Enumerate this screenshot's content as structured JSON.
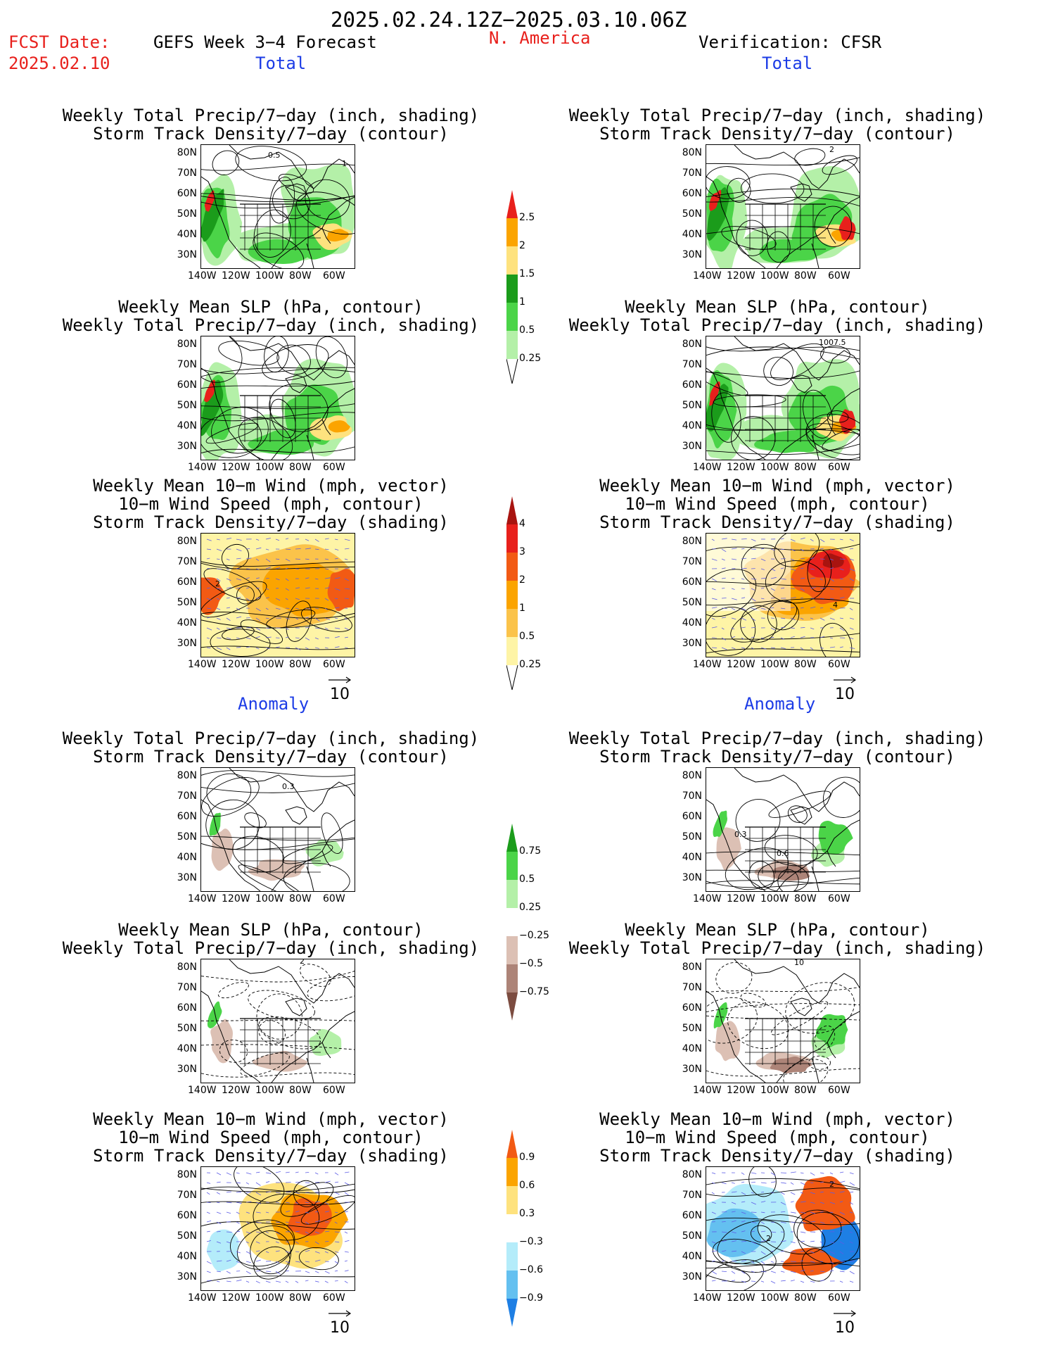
{
  "header": {
    "date_range": "2025.02.24.12Z−2025.03.10.06Z",
    "fcst_label": "FCST Date:",
    "fcst_date": "2025.02.10",
    "forecast_title": "GEFS Week 3−4 Forecast",
    "region": "N. America",
    "verification": "Verification: CFSR"
  },
  "sections": {
    "total_left": "Total",
    "total_right": "Total",
    "anomaly_left": "Anomaly",
    "anomaly_right": "Anomaly"
  },
  "panel_titles": {
    "precip_storm": [
      "Weekly Total Precip/7−day (inch, shading)",
      "Storm Track Density/7−day (contour)"
    ],
    "slp_precip": [
      "Weekly Mean SLP (hPa, contour)",
      "Weekly Total Precip/7−day (inch, shading)"
    ],
    "wind_storm": [
      "Weekly Mean 10−m Wind (mph, vector)",
      "10−m Wind Speed (mph, contour)",
      "Storm Track Density/7−day (shading)"
    ]
  },
  "axes": {
    "lat_ticks": [
      "80N",
      "70N",
      "60N",
      "50N",
      "40N",
      "30N"
    ],
    "lon_ticks": [
      "140W",
      "120W",
      "100W",
      "80W",
      "60W"
    ]
  },
  "vector_reference": "10",
  "map_annotations": {
    "p1_left": "0.5",
    "p1_left_b": "1",
    "p1_right": "2",
    "p2_right": "1007.5",
    "p3_left": "2",
    "p3_right": "4",
    "p4_left": "0.3",
    "p4_right_a": "0.3",
    "p4_right_b": "0.6",
    "p5_left": "2",
    "p5_right": "10",
    "p6_right_a": "2",
    "p6_right_b": "2"
  },
  "colorbars": {
    "precip_total": {
      "labels": [
        "2.5",
        "2",
        "1.5",
        "1",
        "0.5",
        "0.25"
      ],
      "colors": [
        "#e8201c",
        "#fba400",
        "#fee27e",
        "#1b9c1b",
        "#4bd448",
        "#b4f0a8"
      ]
    },
    "storm_total": {
      "labels": [
        "4",
        "3",
        "2",
        "1",
        "0.5",
        "0.25"
      ],
      "colors": [
        "#a81410",
        "#e8201c",
        "#f25a14",
        "#fba400",
        "#fbc34a",
        "#fef4a6"
      ]
    },
    "precip_anom": {
      "labels": [
        "0.75",
        "0.5",
        "0.25",
        "−0.25",
        "−0.5",
        "−0.75"
      ],
      "colors": [
        "#1b9c1b",
        "#4bd448",
        "#b4f0a8",
        "#ffffff",
        "#dcc0b4",
        "#ad8478",
        "#7c4c40"
      ]
    },
    "storm_anom": {
      "labels": [
        "0.9",
        "0.6",
        "0.3",
        "−0.3",
        "−0.6",
        "−0.9"
      ],
      "colors": [
        "#f25a14",
        "#fba400",
        "#fee27e",
        "#ffffff",
        "#b4ecfa",
        "#64c0f0",
        "#1e7fe4"
      ]
    }
  },
  "chart_data": [
    {
      "type": "heatmap",
      "panel": "total-precip-storm",
      "source": "GEFS",
      "title": "Weekly Total Precip/7−day (inch, shading) / Storm Track Density/7−day (contour)",
      "xlim": [
        -140,
        -50
      ],
      "ylim": [
        25,
        85
      ]
    },
    {
      "type": "heatmap",
      "panel": "total-precip-storm",
      "source": "CFSR",
      "title": "Weekly Total Precip/7−day (inch, shading) / Storm Track Density/7−day (contour)",
      "xlim": [
        -140,
        -50
      ],
      "ylim": [
        25,
        85
      ]
    },
    {
      "type": "heatmap",
      "panel": "total-slp-precip",
      "source": "GEFS",
      "xlim": [
        -140,
        -50
      ],
      "ylim": [
        25,
        85
      ]
    },
    {
      "type": "heatmap",
      "panel": "total-slp-precip",
      "source": "CFSR",
      "xlim": [
        -140,
        -50
      ],
      "ylim": [
        25,
        85
      ]
    },
    {
      "type": "heatmap",
      "panel": "total-wind-storm",
      "source": "GEFS",
      "xlim": [
        -140,
        -50
      ],
      "ylim": [
        25,
        85
      ]
    },
    {
      "type": "heatmap",
      "panel": "total-wind-storm",
      "source": "CFSR",
      "xlim": [
        -140,
        -50
      ],
      "ylim": [
        25,
        85
      ]
    },
    {
      "type": "heatmap",
      "panel": "anomaly-precip-storm",
      "source": "GEFS",
      "xlim": [
        -140,
        -50
      ],
      "ylim": [
        25,
        85
      ]
    },
    {
      "type": "heatmap",
      "panel": "anomaly-precip-storm",
      "source": "CFSR",
      "xlim": [
        -140,
        -50
      ],
      "ylim": [
        25,
        85
      ]
    },
    {
      "type": "heatmap",
      "panel": "anomaly-slp-precip",
      "source": "GEFS",
      "xlim": [
        -140,
        -50
      ],
      "ylim": [
        25,
        85
      ]
    },
    {
      "type": "heatmap",
      "panel": "anomaly-slp-precip",
      "source": "CFSR",
      "xlim": [
        -140,
        -50
      ],
      "ylim": [
        25,
        85
      ]
    },
    {
      "type": "heatmap",
      "panel": "anomaly-wind-storm",
      "source": "GEFS",
      "xlim": [
        -140,
        -50
      ],
      "ylim": [
        25,
        85
      ]
    },
    {
      "type": "heatmap",
      "panel": "anomaly-wind-storm",
      "source": "CFSR",
      "xlim": [
        -140,
        -50
      ],
      "ylim": [
        25,
        85
      ]
    }
  ]
}
